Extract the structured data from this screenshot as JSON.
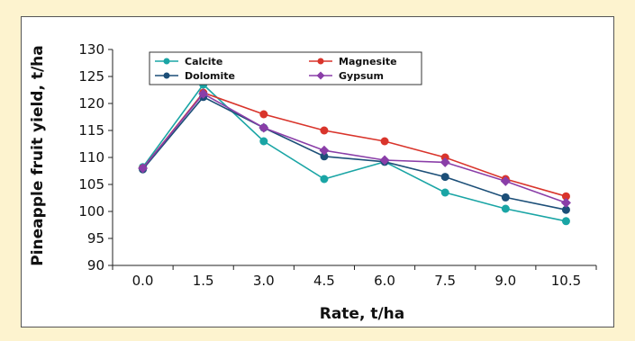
{
  "chart_data": {
    "type": "line",
    "title": "",
    "xlabel": "Rate, t/ha",
    "ylabel": "Pineapple fruit yield, t/ha",
    "categories": [
      "0.0",
      "1.5",
      "3.0",
      "4.5",
      "6.0",
      "7.5",
      "9.0",
      "10.5"
    ],
    "ylim": [
      90,
      130
    ],
    "yticks": [
      90,
      95,
      100,
      105,
      110,
      115,
      120,
      125,
      130
    ],
    "legend_position": "top",
    "grid": false,
    "series": [
      {
        "name": "Calcite",
        "color": "#1aa5a5",
        "marker": "circle",
        "values": [
          108.2,
          123.5,
          113.0,
          106.0,
          109.2,
          103.5,
          100.5,
          98.2
        ]
      },
      {
        "name": "Magnesite",
        "color": "#d9342b",
        "marker": "circle",
        "values": [
          108.0,
          122.0,
          118.0,
          115.0,
          113.0,
          110.0,
          106.0,
          102.8
        ]
      },
      {
        "name": "Dolomite",
        "color": "#1c4f78",
        "marker": "circle",
        "values": [
          107.8,
          121.2,
          115.5,
          110.2,
          109.2,
          106.4,
          102.6,
          100.3
        ]
      },
      {
        "name": "Gypsum",
        "color": "#8a3ea8",
        "marker": "diamond",
        "values": [
          108.0,
          121.8,
          115.5,
          111.3,
          109.5,
          109.1,
          105.6,
          101.6
        ]
      }
    ]
  }
}
